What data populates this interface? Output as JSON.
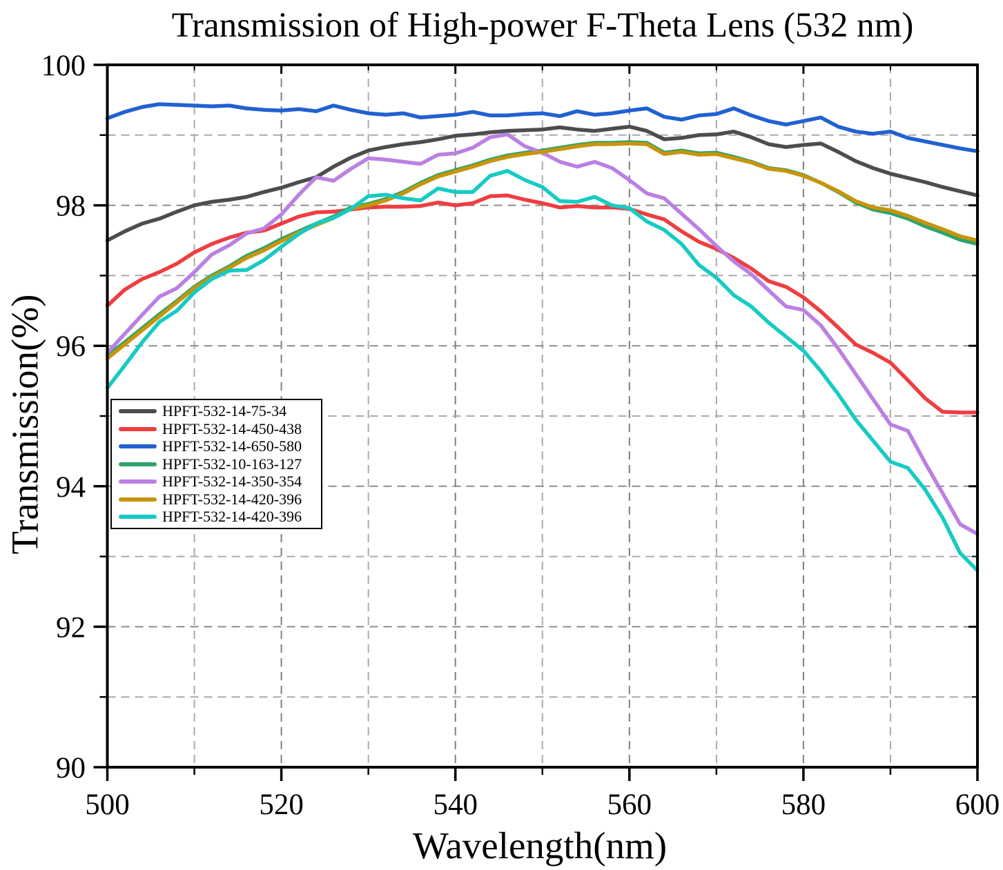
{
  "chart_data": {
    "type": "line",
    "title": "Transmission of High-power F-Theta Lens (532 nm)",
    "xlabel": "Wavelength(nm)",
    "ylabel": "Transmission(%)",
    "xlim": [
      500,
      600
    ],
    "ylim": [
      90,
      100
    ],
    "x_major_ticks": [
      500,
      520,
      540,
      560,
      580,
      600
    ],
    "x_minor_ticks": [
      510,
      530,
      550,
      570,
      590
    ],
    "y_major_ticks": [
      90,
      92,
      94,
      96,
      98,
      100
    ],
    "y_minor_ticks": [
      91,
      93,
      95,
      97,
      99
    ],
    "grid": {
      "style": "dashed",
      "x_every_nm": 10,
      "y_every_percent": 1
    },
    "legend_position": "middle-left",
    "x_start": 500,
    "x_step": 2,
    "series": [
      {
        "name": "HPFT-532-14-75-34",
        "color": "#4d4d4d",
        "values": [
          97.5,
          97.63,
          97.74,
          97.81,
          97.91,
          98.0,
          98.05,
          98.08,
          98.12,
          98.19,
          98.25,
          98.33,
          98.4,
          98.55,
          98.68,
          98.78,
          98.83,
          98.87,
          98.9,
          98.94,
          98.99,
          99.01,
          99.04,
          99.06,
          99.07,
          99.08,
          99.11,
          99.08,
          99.06,
          99.09,
          99.12,
          99.06,
          98.94,
          98.96,
          99.0,
          99.01,
          99.05,
          98.97,
          98.87,
          98.83,
          98.86,
          98.88,
          98.76,
          98.63,
          98.53,
          98.45,
          98.39,
          98.33,
          98.26,
          98.2,
          98.14
        ]
      },
      {
        "name": "HPFT-532-14-450-438",
        "color": "#ee3e41",
        "values": [
          96.57,
          96.8,
          96.95,
          97.05,
          97.17,
          97.33,
          97.45,
          97.54,
          97.61,
          97.64,
          97.74,
          97.84,
          97.9,
          97.91,
          97.94,
          97.97,
          97.98,
          97.98,
          97.99,
          98.04,
          98.0,
          98.03,
          98.13,
          98.14,
          98.08,
          98.03,
          97.97,
          97.99,
          97.97,
          97.97,
          97.95,
          97.87,
          97.8,
          97.63,
          97.48,
          97.38,
          97.25,
          97.1,
          96.92,
          96.84,
          96.69,
          96.49,
          96.26,
          96.02,
          95.9,
          95.76,
          95.51,
          95.25,
          95.06,
          95.05,
          95.05
        ]
      },
      {
        "name": "HPFT-532-14-650-580",
        "color": "#2161d1",
        "values": [
          99.24,
          99.33,
          99.4,
          99.44,
          99.43,
          99.42,
          99.41,
          99.42,
          99.38,
          99.36,
          99.35,
          99.37,
          99.34,
          99.42,
          99.36,
          99.31,
          99.29,
          99.31,
          99.25,
          99.27,
          99.29,
          99.33,
          99.28,
          99.28,
          99.3,
          99.31,
          99.27,
          99.34,
          99.29,
          99.31,
          99.35,
          99.38,
          99.26,
          99.22,
          99.28,
          99.3,
          99.38,
          99.28,
          99.2,
          99.15,
          99.2,
          99.25,
          99.12,
          99.05,
          99.02,
          99.05,
          98.96,
          98.91,
          98.86,
          98.81,
          98.77
        ]
      },
      {
        "name": "HPFT-532-10-163-127",
        "color": "#2fa36b",
        "values": [
          95.86,
          96.05,
          96.25,
          96.45,
          96.64,
          96.84,
          97.0,
          97.13,
          97.28,
          97.39,
          97.52,
          97.63,
          97.74,
          97.84,
          97.97,
          98.02,
          98.09,
          98.19,
          98.32,
          98.43,
          98.5,
          98.57,
          98.65,
          98.71,
          98.75,
          98.78,
          98.82,
          98.86,
          98.89,
          98.89,
          98.9,
          98.89,
          98.75,
          98.78,
          98.74,
          98.75,
          98.69,
          98.62,
          98.53,
          98.5,
          98.43,
          98.32,
          98.19,
          98.04,
          97.94,
          97.89,
          97.81,
          97.7,
          97.61,
          97.51,
          97.45
        ]
      },
      {
        "name": "HPFT-532-14-350-354",
        "color": "#bb80e3",
        "values": [
          95.9,
          96.17,
          96.44,
          96.7,
          96.82,
          97.05,
          97.3,
          97.43,
          97.6,
          97.67,
          97.87,
          98.15,
          98.4,
          98.35,
          98.52,
          98.67,
          98.65,
          98.62,
          98.59,
          98.72,
          98.74,
          98.82,
          98.97,
          99.01,
          98.84,
          98.75,
          98.62,
          98.55,
          98.62,
          98.53,
          98.36,
          98.17,
          98.1,
          97.88,
          97.66,
          97.42,
          97.2,
          97.02,
          96.79,
          96.56,
          96.51,
          96.29,
          95.96,
          95.6,
          95.24,
          94.88,
          94.79,
          94.33,
          93.9,
          93.46,
          93.32
        ]
      },
      {
        "name": "HPFT-532-14-420-396",
        "color": "#c7950b",
        "values": [
          95.82,
          96.02,
          96.22,
          96.42,
          96.62,
          96.82,
          96.98,
          97.11,
          97.25,
          97.36,
          97.49,
          97.61,
          97.72,
          97.82,
          97.95,
          98.0,
          98.07,
          98.17,
          98.3,
          98.41,
          98.48,
          98.55,
          98.63,
          98.69,
          98.73,
          98.76,
          98.8,
          98.84,
          98.87,
          98.87,
          98.88,
          98.87,
          98.73,
          98.76,
          98.72,
          98.73,
          98.67,
          98.61,
          98.52,
          98.49,
          98.42,
          98.32,
          98.2,
          98.06,
          97.97,
          97.93,
          97.85,
          97.75,
          97.66,
          97.56,
          97.5
        ]
      },
      {
        "name": "HPFT-532-14-420-396",
        "color": "#16cbc3",
        "values": [
          95.4,
          95.72,
          96.05,
          96.34,
          96.5,
          96.76,
          96.95,
          97.07,
          97.08,
          97.22,
          97.41,
          97.59,
          97.74,
          97.82,
          97.95,
          98.13,
          98.15,
          98.1,
          98.07,
          98.24,
          98.19,
          98.19,
          98.42,
          98.49,
          98.36,
          98.26,
          98.06,
          98.05,
          98.12,
          98.0,
          97.96,
          97.77,
          97.65,
          97.45,
          97.15,
          96.97,
          96.72,
          96.56,
          96.33,
          96.13,
          95.93,
          95.64,
          95.31,
          94.95,
          94.65,
          94.35,
          94.26,
          93.95,
          93.55,
          93.05,
          92.8
        ]
      }
    ]
  }
}
